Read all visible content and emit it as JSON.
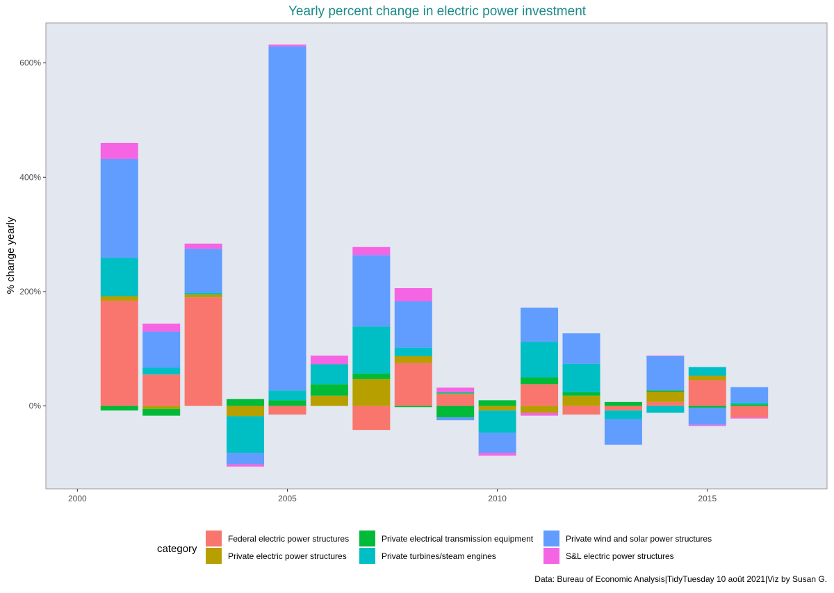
{
  "chart_data": {
    "type": "bar",
    "stacked": true,
    "title": "Yearly percent change in electric power investment",
    "xlabel": "",
    "ylabel": "% change yearly",
    "xlim": [
      1999.25,
      2017.85
    ],
    "ylim": [
      -145,
      670
    ],
    "x_ticks": [
      {
        "value": 2000,
        "label": "2000"
      },
      {
        "value": 2005,
        "label": "2005"
      },
      {
        "value": 2010,
        "label": "2010"
      },
      {
        "value": 2015,
        "label": "2015"
      }
    ],
    "y_ticks": [
      {
        "value": 0,
        "label": "0%"
      },
      {
        "value": 200,
        "label": "200%"
      },
      {
        "value": 400,
        "label": "400%"
      },
      {
        "value": 600,
        "label": "600%"
      }
    ],
    "grid": false,
    "legend_title": "category",
    "legend_position": "bottom",
    "caption": "Data: Bureau of Economic Analysis|TidyTuesday 10 août 2021|Viz by Susan G.",
    "years": [
      2001,
      2002,
      2003,
      2004,
      2005,
      2006,
      2007,
      2008,
      2009,
      2010,
      2011,
      2012,
      2013,
      2014,
      2015,
      2016
    ],
    "series": [
      {
        "name": "Federal electric power structures",
        "color": "#F8766D",
        "values": [
          184,
          55,
          190,
          0,
          -15,
          0,
          -42,
          75,
          20,
          0,
          38,
          -15,
          -8,
          7,
          45,
          -20
        ]
      },
      {
        "name": "Private electric power structures",
        "color": "#B79F00",
        "values": [
          8,
          -5,
          5,
          -18,
          0,
          18,
          47,
          12,
          2,
          -8,
          -12,
          18,
          0,
          18,
          8,
          0
        ]
      },
      {
        "name": "Private electrical transmission equipment",
        "color": "#00BA38",
        "values": [
          -8,
          -12,
          0,
          12,
          10,
          20,
          10,
          -2,
          -20,
          10,
          12,
          6,
          7,
          2,
          -3,
          3
        ]
      },
      {
        "name": "Private turbines/steam engines",
        "color": "#00BFC4",
        "values": [
          67,
          12,
          3,
          -64,
          17,
          35,
          82,
          15,
          2,
          -39,
          62,
          50,
          -15,
          -12,
          15,
          3
        ]
      },
      {
        "name": "Private wind and solar power structures",
        "color": "#619CFF",
        "values": [
          173,
          63,
          77,
          -20,
          602,
          0,
          125,
          81,
          -5,
          -35,
          60,
          53,
          -45,
          60,
          -30,
          27
        ]
      },
      {
        "name": "S&L electric power structures",
        "color": "#F564E3",
        "values": [
          28,
          14,
          9,
          -4,
          3,
          15,
          14,
          23,
          8,
          -5,
          -5,
          0,
          0,
          1,
          -2,
          -2
        ]
      }
    ]
  }
}
